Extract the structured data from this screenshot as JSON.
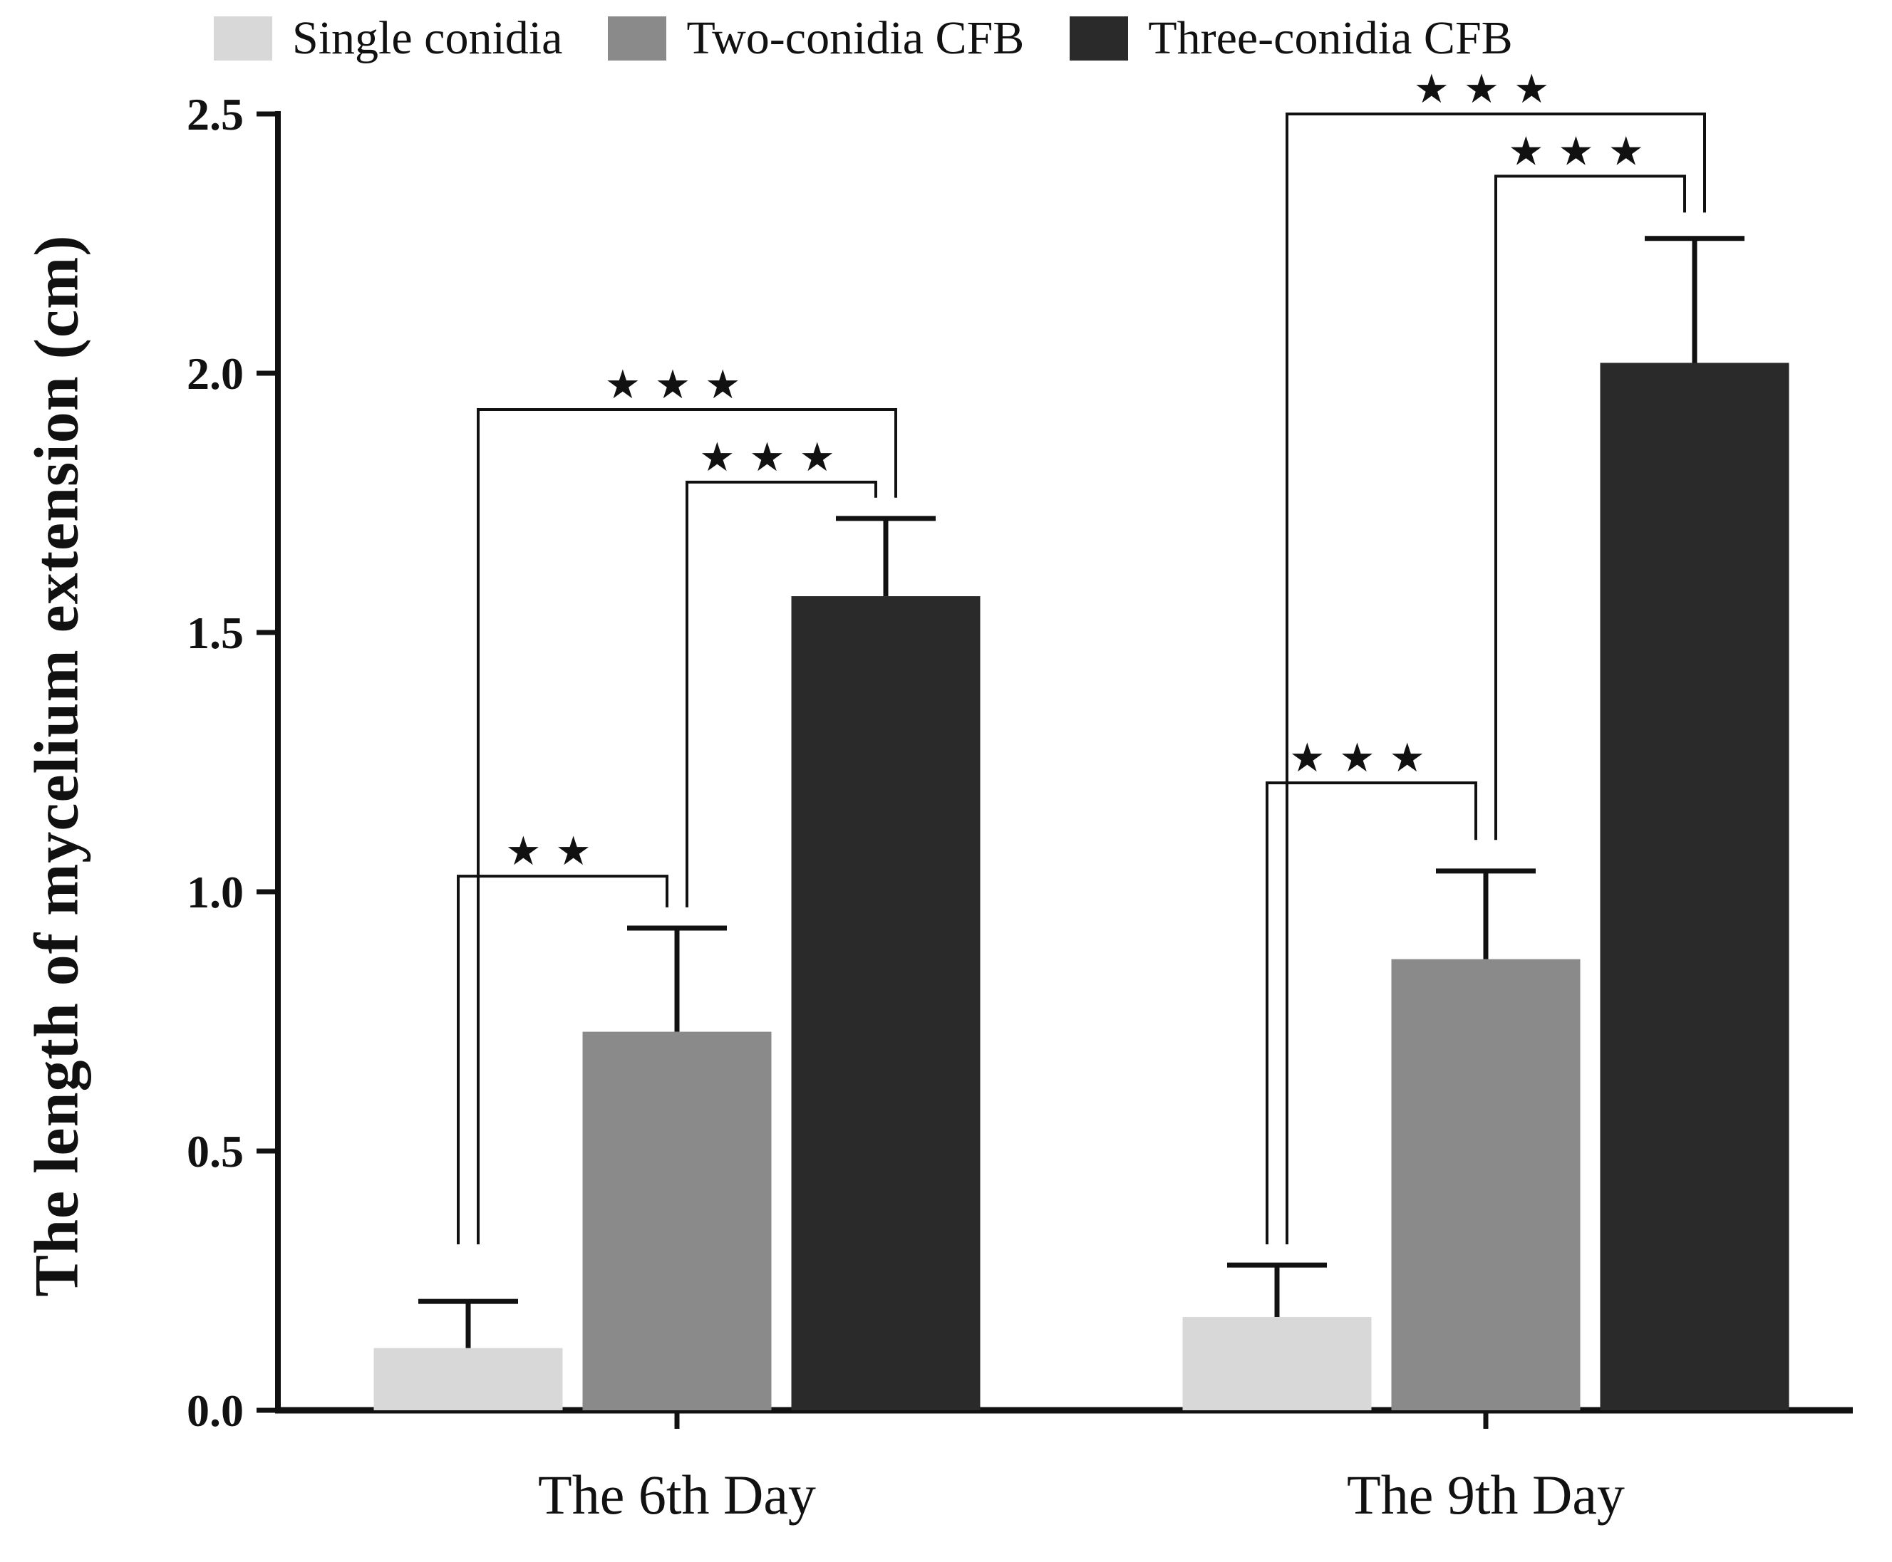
{
  "chart_data": {
    "type": "bar",
    "title": "",
    "xlabel": "",
    "ylabel": "The length of mycelium extension (cm)",
    "ylim": [
      0.0,
      2.5
    ],
    "ytick_labels": [
      "0.0",
      "0.5",
      "1.0",
      "1.5",
      "2.0",
      "2.5"
    ],
    "grid": false,
    "legend_position": "top",
    "axis_color": "#111111",
    "categories": [
      "The 6th Day",
      "The 9th Day"
    ],
    "series": [
      {
        "name": "Single conidia",
        "color": "#d8d8d8",
        "values": [
          0.12,
          0.18
        ],
        "errors_upper": [
          0.09,
          0.1
        ]
      },
      {
        "name": "Two-conidia CFB",
        "color": "#8a8a8a",
        "values": [
          0.73,
          0.87
        ],
        "errors_upper": [
          0.2,
          0.17
        ]
      },
      {
        "name": "Three-conidia CFB",
        "color": "#2a2a2a",
        "values": [
          1.57,
          2.02
        ],
        "errors_upper": [
          0.15,
          0.24
        ]
      }
    ],
    "significance_brackets": [
      {
        "group": 0,
        "from": 0,
        "to": 1,
        "stars": "★★",
        "y": 1.03,
        "drop_left_to": 0.32,
        "drop_right_to": 0.97,
        "nudge": [
          -14,
          -14
        ]
      },
      {
        "group": 0,
        "from": 1,
        "to": 2,
        "stars": "★★★",
        "y": 1.79,
        "drop_left_to": 0.97,
        "drop_right_to": 1.76,
        "nudge": [
          14,
          -14
        ]
      },
      {
        "group": 0,
        "from": 0,
        "to": 2,
        "stars": "★★★",
        "y": 1.93,
        "drop_left_to": 0.32,
        "drop_right_to": 1.76,
        "nudge": [
          14,
          14
        ]
      },
      {
        "group": 1,
        "from": 0,
        "to": 1,
        "stars": "★★★",
        "y": 1.21,
        "drop_left_to": 0.32,
        "drop_right_to": 1.1,
        "nudge": [
          -14,
          -14
        ]
      },
      {
        "group": 1,
        "from": 1,
        "to": 2,
        "stars": "★★★",
        "y": 2.38,
        "drop_left_to": 1.1,
        "drop_right_to": 2.31,
        "nudge": [
          14,
          -14
        ]
      },
      {
        "group": 1,
        "from": 0,
        "to": 2,
        "stars": "★★★",
        "y": 2.5,
        "drop_left_to": 0.32,
        "drop_right_to": 2.31,
        "nudge": [
          14,
          14
        ]
      }
    ]
  }
}
